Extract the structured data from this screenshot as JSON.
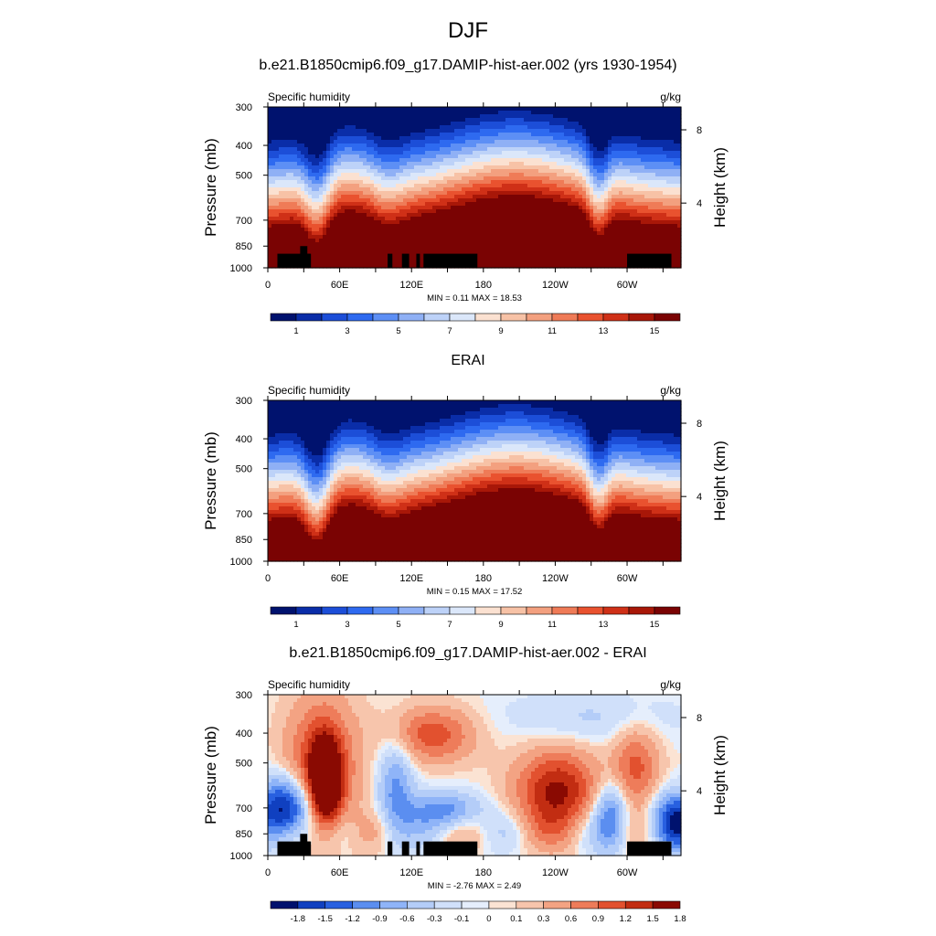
{
  "main_title": "DJF",
  "colors": {
    "abs_scale": [
      "#00126e",
      "#0a2da8",
      "#1c4ed8",
      "#2e6af0",
      "#5d8ff5",
      "#8fb0f5",
      "#bdd2f8",
      "#dbe7fa",
      "#fbe1d1",
      "#f7c2a6",
      "#f3a07f",
      "#ef7b57",
      "#e9522f",
      "#cf3017",
      "#a81708",
      "#7a0303"
    ],
    "diff_scale": [
      "#00126e",
      "#1040c0",
      "#2860e0",
      "#5b8ef0",
      "#8fb4f8",
      "#b4cdf8",
      "#d0e0fa",
      "#e5eefc",
      "#fbe3d3",
      "#f7c5ac",
      "#f3a383",
      "#ee7c5a",
      "#e2512f",
      "#c22d12",
      "#8a0a02"
    ],
    "land": "#000000"
  },
  "chart_data": [
    {
      "type": "contour",
      "title": "b.e21.B1850cmip6.f09_g17.DAMIP-hist-aer.002 (yrs 1930-1954)",
      "left_string": "Specific humidity",
      "right_string": "g/kg",
      "ylabel": "Pressure (mb)",
      "ylabel_right": "Height (km)",
      "xticks": [
        "0",
        "60E",
        "120E",
        "180",
        "120W",
        "60W"
      ],
      "yticks": [
        "300",
        "400",
        "500",
        "700",
        "850",
        "1000"
      ],
      "yticks_right": [
        "8",
        "4"
      ],
      "stats": "MIN =   0.11  MAX =  18.53",
      "colorbar_labels": [
        "1",
        "3",
        "5",
        "7",
        "9",
        "11",
        "13",
        "15"
      ],
      "min": 0.11,
      "max": 18.53
    },
    {
      "type": "contour",
      "title": "ERAI",
      "left_string": "Specific humidity",
      "right_string": "g/kg",
      "ylabel": "Pressure (mb)",
      "ylabel_right": "Height (km)",
      "xticks": [
        "0",
        "60E",
        "120E",
        "180",
        "120W",
        "60W"
      ],
      "yticks": [
        "300",
        "400",
        "500",
        "700",
        "850",
        "1000"
      ],
      "yticks_right": [
        "8",
        "4"
      ],
      "stats": "MIN =   0.15  MAX =  17.52",
      "colorbar_labels": [
        "1",
        "3",
        "5",
        "7",
        "9",
        "11",
        "13",
        "15"
      ],
      "min": 0.15,
      "max": 17.52
    },
    {
      "type": "contour",
      "title": "b.e21.B1850cmip6.f09_g17.DAMIP-hist-aer.002 - ERAI",
      "left_string": "Specific humidity",
      "right_string": "g/kg",
      "ylabel": "Pressure (mb)",
      "ylabel_right": "Height (km)",
      "xticks": [
        "0",
        "60E",
        "120E",
        "180",
        "120W",
        "60W"
      ],
      "yticks": [
        "300",
        "400",
        "500",
        "700",
        "850",
        "1000"
      ],
      "yticks_right": [
        "8",
        "4"
      ],
      "stats": "MIN =  -2.76  MAX =   2.49",
      "colorbar_labels": [
        "-1.8",
        "-1.5",
        "-1.2",
        "-0.9",
        "-0.6",
        "-0.3",
        "-0.1",
        "0",
        "0.1",
        "0.3",
        "0.6",
        "0.9",
        "1.2",
        "1.5",
        "1.8"
      ],
      "min": -2.76,
      "max": 2.49
    }
  ]
}
